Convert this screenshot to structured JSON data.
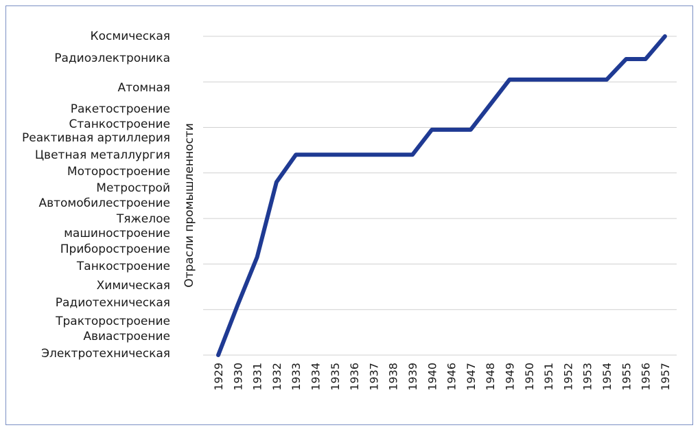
{
  "chart_data": {
    "type": "line",
    "title": "",
    "ylabel": "Отрасли промышленности",
    "xlabel": "",
    "categories": [
      "1929",
      "1930",
      "1931",
      "1932",
      "1933",
      "1934",
      "1935",
      "1936",
      "1937",
      "1938",
      "1939",
      "1940",
      "1946",
      "1947",
      "1948",
      "1949",
      "1950",
      "1951",
      "1952",
      "1953",
      "1954",
      "1955",
      "1956",
      "1957"
    ],
    "y_tick_labels": [
      "Космическая",
      "Радиоэлектроника",
      "Атомная",
      "Ракетостроение",
      "Станкостроение",
      "Реактивная артиллерия",
      "Цветная металлургия",
      "Моторостроение",
      "Метрострой",
      "Автомобилестроение",
      "Тяжелое машиностроение",
      "Приборостроение",
      "Танкостроение",
      "Химическая",
      "Радиотехническая",
      "Тракторостроение",
      "Авиастроение",
      "Электротехническая"
    ],
    "series": [
      {
        "values": [
          0,
          1.1,
          2.15,
          3.8,
          4.4,
          4.4,
          4.4,
          4.4,
          4.4,
          4.4,
          4.4,
          4.95,
          4.95,
          4.95,
          5.5,
          6.05,
          6.05,
          6.05,
          6.05,
          6.05,
          6.05,
          6.5,
          6.5,
          7.0
        ]
      }
    ],
    "ylim": [
      0,
      7
    ],
    "grid": true,
    "line_color": "#1f3a93",
    "grid_color": "#d0d0d0"
  }
}
